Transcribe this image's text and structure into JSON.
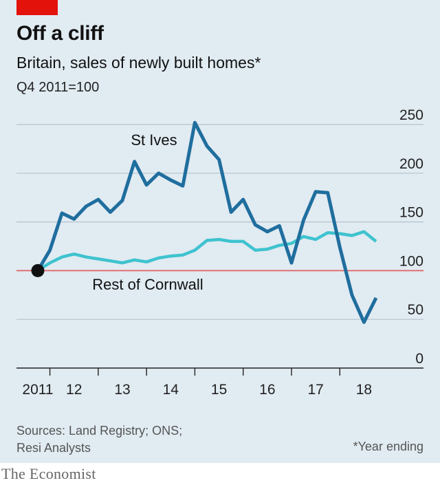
{
  "header": {
    "title": "Off a cliff",
    "subtitle": "Britain, sales of newly built homes*",
    "unit": "Q4 2011=100"
  },
  "footer": {
    "source": "Sources: Land Registry; ONS; Resi Analysts",
    "footnote": "*Year ending",
    "brand": "The Economist"
  },
  "colors": {
    "background": "#e1ebf2",
    "tag": "#e3120b",
    "st_ives": "#1f6e9e",
    "rest_of_cornwall": "#3ec3cf",
    "baseline": "#e06363",
    "grid": "#b4c2cc",
    "marker": "#111111"
  },
  "chart_data": {
    "type": "line",
    "title": "Off a cliff",
    "subtitle": "Britain, sales of newly built homes*",
    "ylabel": "Q4 2011=100",
    "ylim": [
      0,
      250
    ],
    "yticks": [
      0,
      50,
      100,
      150,
      200,
      250
    ],
    "y_axis_side": "right",
    "grid": true,
    "reference_line": 100,
    "xlim": [
      2011.75,
      2018.75
    ],
    "xticks": [
      {
        "value": 2011.75,
        "label": "2011"
      },
      {
        "value": 2012.5,
        "label": "12"
      },
      {
        "value": 2013.5,
        "label": "13"
      },
      {
        "value": 2014.5,
        "label": "14"
      },
      {
        "value": 2015.5,
        "label": "15"
      },
      {
        "value": 2016.5,
        "label": "16"
      },
      {
        "value": 2017.5,
        "label": "17"
      },
      {
        "value": 2018.5,
        "label": "18"
      }
    ],
    "series": [
      {
        "name": "St Ives",
        "x": [
          2011.75,
          2012.0,
          2012.25,
          2012.5,
          2012.75,
          2013.0,
          2013.25,
          2013.5,
          2013.75,
          2014.0,
          2014.25,
          2014.5,
          2014.75,
          2015.0,
          2015.25,
          2015.5,
          2015.75,
          2016.0,
          2016.25,
          2016.5,
          2016.75,
          2017.0,
          2017.25,
          2017.5,
          2017.75,
          2018.0,
          2018.25,
          2018.5,
          2018.75
        ],
        "values": [
          100,
          121,
          159,
          153,
          166,
          173,
          160,
          172,
          212,
          188,
          200,
          193,
          187,
          252,
          228,
          214,
          160,
          173,
          147,
          140,
          146,
          108,
          152,
          181,
          180,
          124,
          75,
          47,
          72
        ]
      },
      {
        "name": "Rest of Cornwall",
        "x": [
          2011.75,
          2012.0,
          2012.25,
          2012.5,
          2012.75,
          2013.0,
          2013.25,
          2013.5,
          2013.75,
          2014.0,
          2014.25,
          2014.5,
          2014.75,
          2015.0,
          2015.25,
          2015.5,
          2015.75,
          2016.0,
          2016.25,
          2016.5,
          2016.75,
          2017.0,
          2017.25,
          2017.5,
          2017.75,
          2018.0,
          2018.25,
          2018.5,
          2018.75
        ],
        "values": [
          100,
          108,
          114,
          117,
          114,
          112,
          110,
          108,
          111,
          109,
          113,
          115,
          116,
          121,
          131,
          132,
          130,
          130,
          121,
          122,
          126,
          128,
          135,
          132,
          139,
          138,
          136,
          140,
          130
        ]
      }
    ],
    "start_marker": {
      "x": 2011.75,
      "y": 100
    }
  }
}
